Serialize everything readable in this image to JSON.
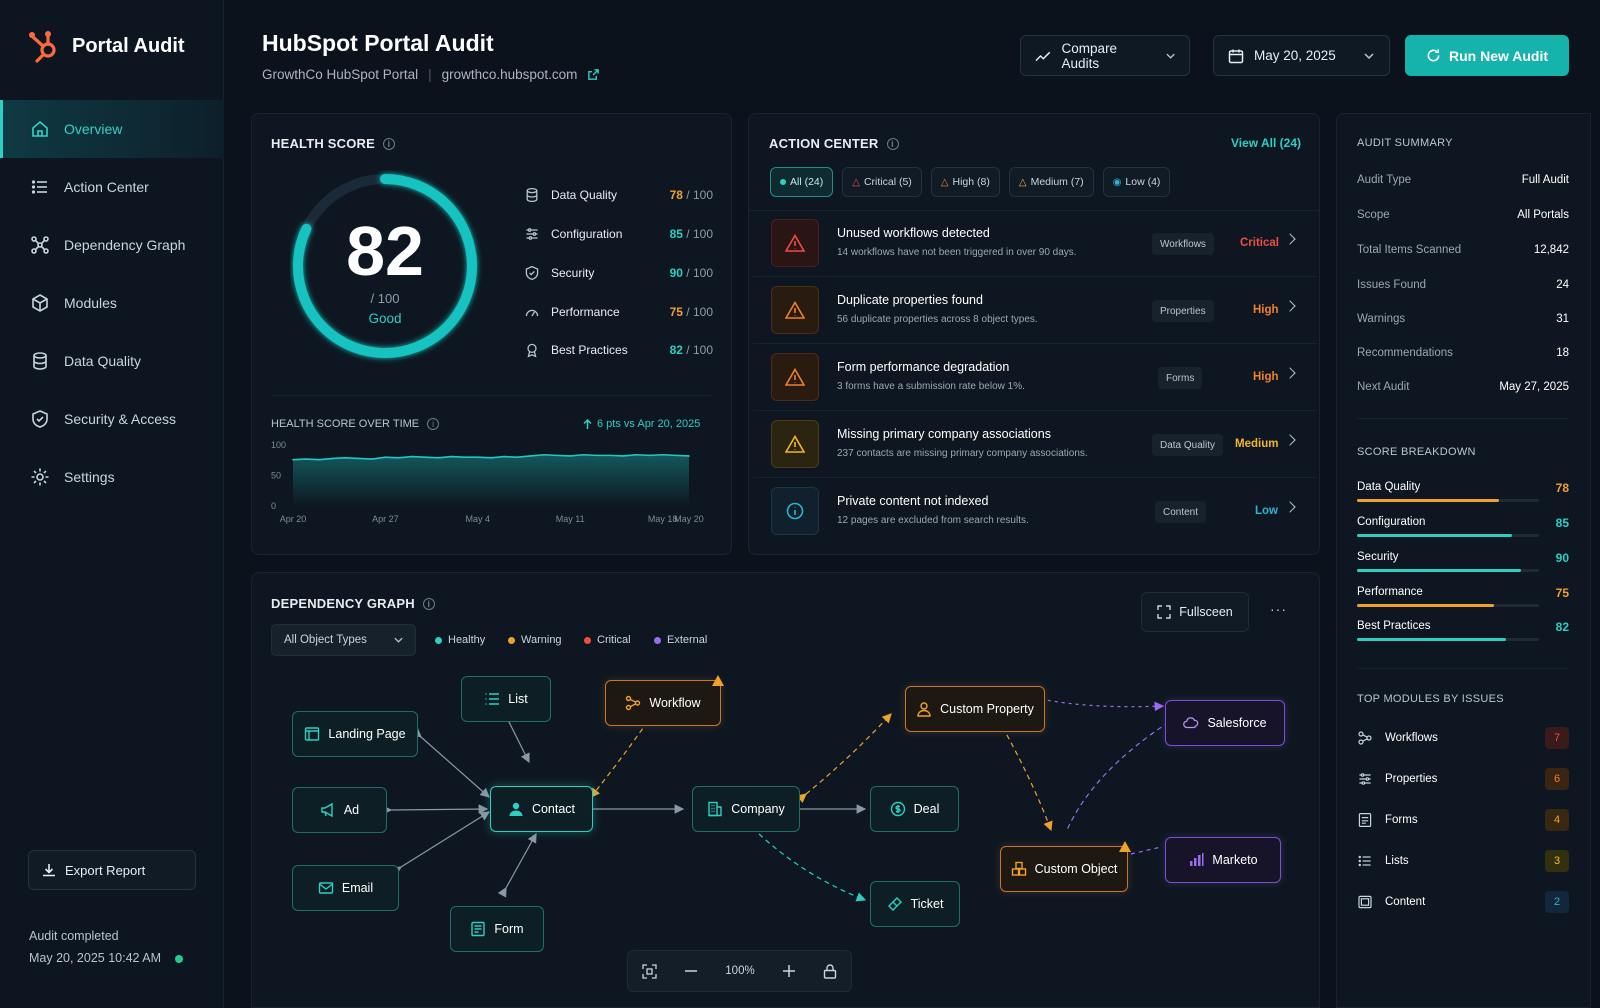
{
  "app": {
    "name": "Portal Audit"
  },
  "nav": [
    {
      "label": "Overview",
      "icon": "home-icon"
    },
    {
      "label": "Action Center",
      "icon": "list-icon"
    },
    {
      "label": "Dependency Graph",
      "icon": "graph-icon"
    },
    {
      "label": "Modules",
      "icon": "cube-icon"
    },
    {
      "label": "Data Quality",
      "icon": "database-icon"
    },
    {
      "label": "Security & Access",
      "icon": "shield-icon"
    },
    {
      "label": "Settings",
      "icon": "gear-icon"
    }
  ],
  "sidebar_footer": {
    "export_label": "Export Report",
    "status_title": "Audit completed",
    "status_time": "May 20, 2025 10:42 AM"
  },
  "header": {
    "title": "HubSpot Portal Audit",
    "portal_name": "GrowthCo HubSpot Portal",
    "separator": "|",
    "domain": "growthco.hubspot.com",
    "compare_label": "Compare Audits",
    "date_label": "May 20, 2025",
    "run_label": "Run New Audit"
  },
  "health": {
    "title": "HEALTH SCORE",
    "score": 82,
    "max": "/ 100",
    "rating": "Good",
    "metrics": [
      {
        "label": "Data Quality",
        "value": "78",
        "max": " / 100",
        "icon": "database-icon"
      },
      {
        "label": "Configuration",
        "value": "85",
        "max": " / 100",
        "icon": "sliders-icon"
      },
      {
        "label": "Security",
        "value": "90",
        "max": " / 100",
        "icon": "shield-icon"
      },
      {
        "label": "Performance",
        "value": "75",
        "max": " / 100",
        "icon": "gauge-icon"
      },
      {
        "label": "Best Practices",
        "value": "82",
        "max": " / 100",
        "icon": "badge-icon"
      }
    ],
    "over_time_title": "HEALTH SCORE OVER TIME",
    "delta": "6 pts vs Apr 20, 2025"
  },
  "chart_data": {
    "type": "area",
    "title": "HEALTH SCORE OVER TIME",
    "xlabel": "",
    "ylabel": "",
    "ylim": [
      0,
      100
    ],
    "yticks": [
      "100",
      "50",
      "0"
    ],
    "x_tick_labels": [
      "Apr 20",
      "Apr 27",
      "May 4",
      "May 11",
      "May 18",
      "May 20"
    ],
    "x": [
      "Apr 20",
      "Apr 21",
      "Apr 22",
      "Apr 23",
      "Apr 24",
      "Apr 25",
      "Apr 26",
      "Apr 27",
      "Apr 28",
      "Apr 29",
      "Apr 30",
      "May 1",
      "May 2",
      "May 3",
      "May 4",
      "May 5",
      "May 6",
      "May 7",
      "May 8",
      "May 9",
      "May 10",
      "May 11",
      "May 12",
      "May 13",
      "May 14",
      "May 15",
      "May 16",
      "May 17",
      "May 18",
      "May 19",
      "May 20"
    ],
    "values": [
      76,
      77,
      76,
      78,
      79,
      78,
      77,
      80,
      79,
      81,
      80,
      79,
      81,
      80,
      80,
      79,
      81,
      80,
      82,
      84,
      83,
      82,
      84,
      83,
      83,
      82,
      84,
      83,
      84,
      83,
      82
    ],
    "grid": false
  },
  "action_center": {
    "title": "ACTION CENTER",
    "view_all": "View All (24)",
    "filters": [
      {
        "label": "All (24)",
        "color": "#2bd0c2"
      },
      {
        "label": "Critical (5)",
        "color": "#ef4d44"
      },
      {
        "label": "High (8)",
        "color": "#f0802a"
      },
      {
        "label": "Medium (7)",
        "color": "#f0b52a"
      },
      {
        "label": "Low (4)",
        "color": "#2bb5d0"
      }
    ],
    "items": [
      {
        "title": "Unused workflows detected",
        "desc": "14 workflows have not been triggered in over 90 days.",
        "tag": "Workflows",
        "severity": "Critical",
        "color": "#ef4d44"
      },
      {
        "title": "Duplicate properties found",
        "desc": "56 duplicate properties across 8 object types.",
        "tag": "Properties",
        "severity": "High",
        "color": "#f0802a"
      },
      {
        "title": "Form performance degradation",
        "desc": "3 forms have a submission rate below 1%.",
        "tag": "Forms",
        "severity": "High",
        "color": "#f0802a"
      },
      {
        "title": "Missing primary company associations",
        "desc": "237 contacts are missing primary company associations.",
        "tag": "Data Quality",
        "severity": "Medium",
        "color": "#f0b52a"
      },
      {
        "title": "Private content not indexed",
        "desc": "12 pages are excluded from search results.",
        "tag": "Content",
        "severity": "Low",
        "color": "#2bb5d0"
      }
    ]
  },
  "summary": {
    "title": "AUDIT SUMMARY",
    "rows": [
      {
        "k": "Audit Type",
        "v": "Full Audit"
      },
      {
        "k": "Scope",
        "v": "All Portals"
      },
      {
        "k": "Total Items Scanned",
        "v": "12,842"
      },
      {
        "k": "Issues Found",
        "v": "24"
      },
      {
        "k": "Warnings",
        "v": "31"
      },
      {
        "k": "Recommendations",
        "v": "18"
      },
      {
        "k": "Next Audit",
        "v": "May 27, 2025"
      }
    ],
    "breakdown_title": "SCORE BREAKDOWN",
    "breakdown": [
      {
        "label": "Data Quality",
        "value": 78,
        "color": "#f0a12a"
      },
      {
        "label": "Configuration",
        "value": 85,
        "color": "#2bd0c2"
      },
      {
        "label": "Security",
        "value": 90,
        "color": "#2bd0c2"
      },
      {
        "label": "Performance",
        "value": 75,
        "color": "#f0a12a"
      },
      {
        "label": "Best Practices",
        "value": 82,
        "color": "#2bd0c2"
      }
    ],
    "modules_title": "TOP MODULES BY ISSUES",
    "modules": [
      {
        "label": "Workflows",
        "count": "7",
        "color": "#ef4d44",
        "bg": "#3a1a1a",
        "icon": "workflow-icon"
      },
      {
        "label": "Properties",
        "count": "6",
        "color": "#f0802a",
        "bg": "#3a2414",
        "icon": "sliders-icon"
      },
      {
        "label": "Forms",
        "count": "4",
        "color": "#f0a12a",
        "bg": "#382812",
        "icon": "form-icon"
      },
      {
        "label": "Lists",
        "count": "3",
        "color": "#f0c02a",
        "bg": "#33300f",
        "icon": "list-icon"
      },
      {
        "label": "Content",
        "count": "2",
        "color": "#2bb5d0",
        "bg": "#12283a",
        "icon": "content-icon"
      }
    ]
  },
  "graph": {
    "title": "DEPENDENCY GRAPH",
    "filter_label": "All Object Types",
    "legend": [
      {
        "label": "Healthy",
        "color": "#2bd0c2"
      },
      {
        "label": "Warning",
        "color": "#f0a12a"
      },
      {
        "label": "Critical",
        "color": "#ef4d44"
      },
      {
        "label": "External",
        "color": "#9b6cf0"
      }
    ],
    "fullscreen_label": "Fullsceen",
    "more_label": "···",
    "zoom": "100%",
    "nodes": {
      "list": "List",
      "landing_page": "Landing Page",
      "workflow": "Workflow",
      "ad": "Ad",
      "contact": "Contact",
      "email": "Email",
      "form": "Form",
      "company": "Company",
      "deal": "Deal",
      "ticket": "Ticket",
      "custom_property": "Custom Property",
      "custom_object": "Custom Object",
      "salesforce": "Salesforce",
      "marketo": "Marketo"
    }
  }
}
